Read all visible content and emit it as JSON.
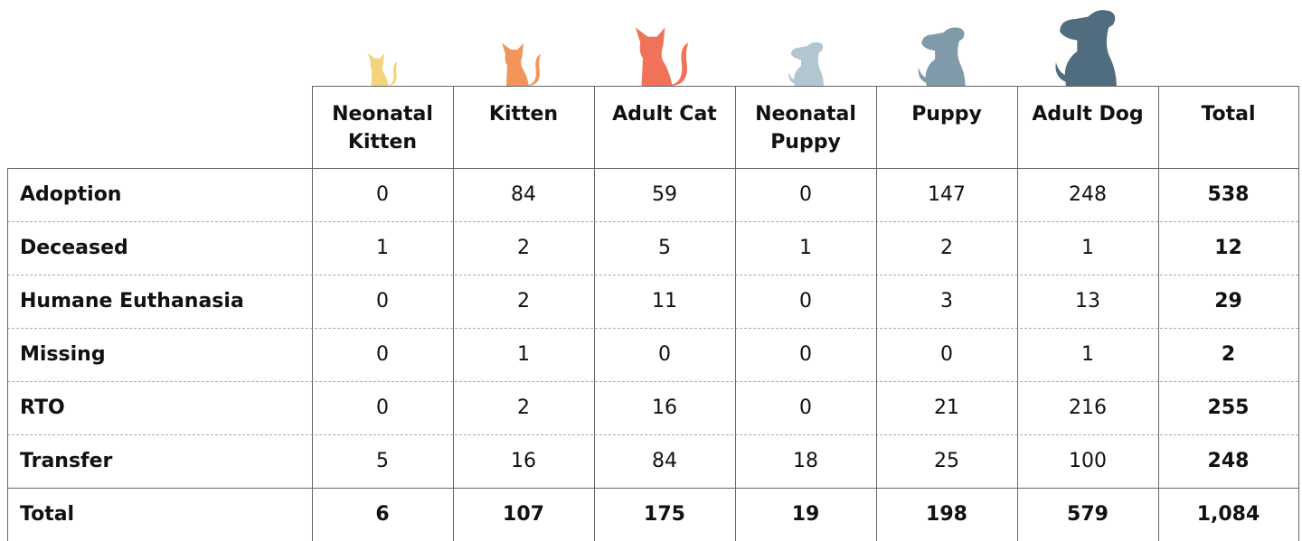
{
  "table": {
    "columns": [
      "Neonatal Kitten",
      "Kitten",
      "Adult Cat",
      "Neonatal Puppy",
      "Puppy",
      "Adult Dog",
      "Total"
    ],
    "rows": [
      {
        "label": "Adoption",
        "values": [
          0,
          84,
          59,
          0,
          147,
          248
        ],
        "total": 538
      },
      {
        "label": "Deceased",
        "values": [
          1,
          2,
          5,
          1,
          2,
          1
        ],
        "total": 12
      },
      {
        "label": "Humane Euthanasia",
        "values": [
          0,
          2,
          11,
          0,
          3,
          13
        ],
        "total": 29
      },
      {
        "label": "Missing",
        "values": [
          0,
          1,
          0,
          0,
          0,
          1
        ],
        "total": 2
      },
      {
        "label": "RTO",
        "values": [
          0,
          2,
          16,
          0,
          21,
          216
        ],
        "total": 255
      },
      {
        "label": "Transfer",
        "values": [
          5,
          16,
          84,
          18,
          25,
          100
        ],
        "total": 248
      }
    ],
    "total_row": {
      "label": "Total",
      "values": [
        6,
        107,
        175,
        19,
        198,
        579
      ],
      "total": "1,084"
    }
  }
}
